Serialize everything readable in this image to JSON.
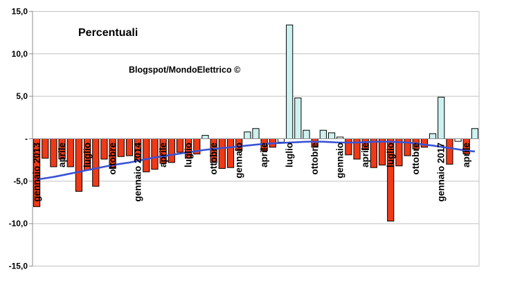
{
  "chart_data": {
    "type": "bar",
    "title": "Percentuali",
    "watermark": "Blogspot/MondoElettrico ©",
    "ylabel": "",
    "xlabel": "",
    "ylim": [
      -15,
      15
    ],
    "grid": true,
    "legend": "none",
    "y_ticks": [
      {
        "value": 15,
        "label": "15,0"
      },
      {
        "value": 10,
        "label": "10,0"
      },
      {
        "value": 5,
        "label": "5,0"
      },
      {
        "value": 0,
        "label": "-"
      },
      {
        "value": -5,
        "label": "-5,0"
      },
      {
        "value": -10,
        "label": "-10,0"
      },
      {
        "value": -15,
        "label": "-15,0"
      }
    ],
    "bars": [
      {
        "axis_label": "gennaio 2013",
        "value": -8.0
      },
      {
        "axis_label": "",
        "value": -2.3
      },
      {
        "axis_label": "",
        "value": -3.3
      },
      {
        "axis_label": "aprile",
        "value": -2.4
      },
      {
        "axis_label": "",
        "value": -3.3
      },
      {
        "axis_label": "",
        "value": -6.2
      },
      {
        "axis_label": "luglio",
        "value": -3.7
      },
      {
        "axis_label": "",
        "value": -5.6
      },
      {
        "axis_label": "",
        "value": -2.4
      },
      {
        "axis_label": "ottobre",
        "value": -3.5
      },
      {
        "axis_label": "",
        "value": -2.1
      },
      {
        "axis_label": "",
        "value": -2.0
      },
      {
        "axis_label": "gennaio 2014",
        "value": -2.6
      },
      {
        "axis_label": "",
        "value": -3.9
      },
      {
        "axis_label": "",
        "value": -3.6
      },
      {
        "axis_label": "aprile",
        "value": -2.9
      },
      {
        "axis_label": "",
        "value": -2.8
      },
      {
        "axis_label": "",
        "value": -1.6
      },
      {
        "axis_label": "luglio",
        "value": -2.3
      },
      {
        "axis_label": "",
        "value": -1.8
      },
      {
        "axis_label": "",
        "value": 0.4
      },
      {
        "axis_label": "ottobre",
        "value": -2.8
      },
      {
        "axis_label": "",
        "value": -3.5
      },
      {
        "axis_label": "",
        "value": -3.4
      },
      {
        "axis_label": "gennaio",
        "value": -1.4
      },
      {
        "axis_label": "",
        "value": 0.8
      },
      {
        "axis_label": "",
        "value": 1.2
      },
      {
        "axis_label": "aprile",
        "value": -1.4
      },
      {
        "axis_label": "",
        "value": -1.0
      },
      {
        "axis_label": "",
        "value": -0.4,
        "fill": "neutral"
      },
      {
        "axis_label": "luglio",
        "value": 13.4
      },
      {
        "axis_label": "",
        "value": 4.8
      },
      {
        "axis_label": "",
        "value": 1.0
      },
      {
        "axis_label": "ottobre",
        "value": -1.0
      },
      {
        "axis_label": "",
        "value": 1.0
      },
      {
        "axis_label": "",
        "value": 0.7
      },
      {
        "axis_label": "gennaio",
        "value": 0.2,
        "fill": "neutral"
      },
      {
        "axis_label": "",
        "value": -1.9
      },
      {
        "axis_label": "",
        "value": -2.4
      },
      {
        "axis_label": "aprile",
        "value": -1.3
      },
      {
        "axis_label": "",
        "value": -3.4
      },
      {
        "axis_label": "",
        "value": -3.1
      },
      {
        "axis_label": "luglio",
        "value": -9.7
      },
      {
        "axis_label": "",
        "value": -3.2
      },
      {
        "axis_label": "",
        "value": -2.0
      },
      {
        "axis_label": "ottobre",
        "value": -1.2
      },
      {
        "axis_label": "",
        "value": -1.0
      },
      {
        "axis_label": "",
        "value": 0.6
      },
      {
        "axis_label": "gennaio 2017",
        "value": 4.9
      },
      {
        "axis_label": "",
        "value": -3.0
      },
      {
        "axis_label": "",
        "value": -0.3,
        "fill": "neutral"
      },
      {
        "axis_label": "aprile",
        "value": -1.8
      },
      {
        "axis_label": "",
        "value": 1.2
      }
    ],
    "trend_series": {
      "name": "trend-line",
      "values": [
        -4.8,
        -4.65,
        -4.5,
        -4.3,
        -4.1,
        -3.9,
        -3.7,
        -3.5,
        -3.3,
        -3.1,
        -2.95,
        -2.8,
        -2.6,
        -2.4,
        -2.2,
        -2.05,
        -1.9,
        -1.75,
        -1.6,
        -1.45,
        -1.3,
        -1.2,
        -1.1,
        -1.0,
        -0.9,
        -0.8,
        -0.7,
        -0.6,
        -0.55,
        -0.5,
        -0.45,
        -0.4,
        -0.35,
        -0.35,
        -0.35,
        -0.4,
        -0.45,
        -0.45,
        -0.45,
        -0.4,
        -0.35,
        -0.35,
        -0.35,
        -0.4,
        -0.45,
        -0.55,
        -0.7,
        -0.8,
        -0.95,
        -1.1,
        -1.25,
        -1.4,
        -1.5
      ]
    },
    "colors": {
      "negative_bar": "#f03917",
      "positive_bar": "#ccf2f0",
      "neutral_bar": "#ffffff",
      "bar_outline": "#000000",
      "trend_line": "#3a53d6",
      "gridline": "#c0c0c0",
      "axis": "#8c8c8c",
      "text": "#000000",
      "background": "#ffffff"
    }
  }
}
